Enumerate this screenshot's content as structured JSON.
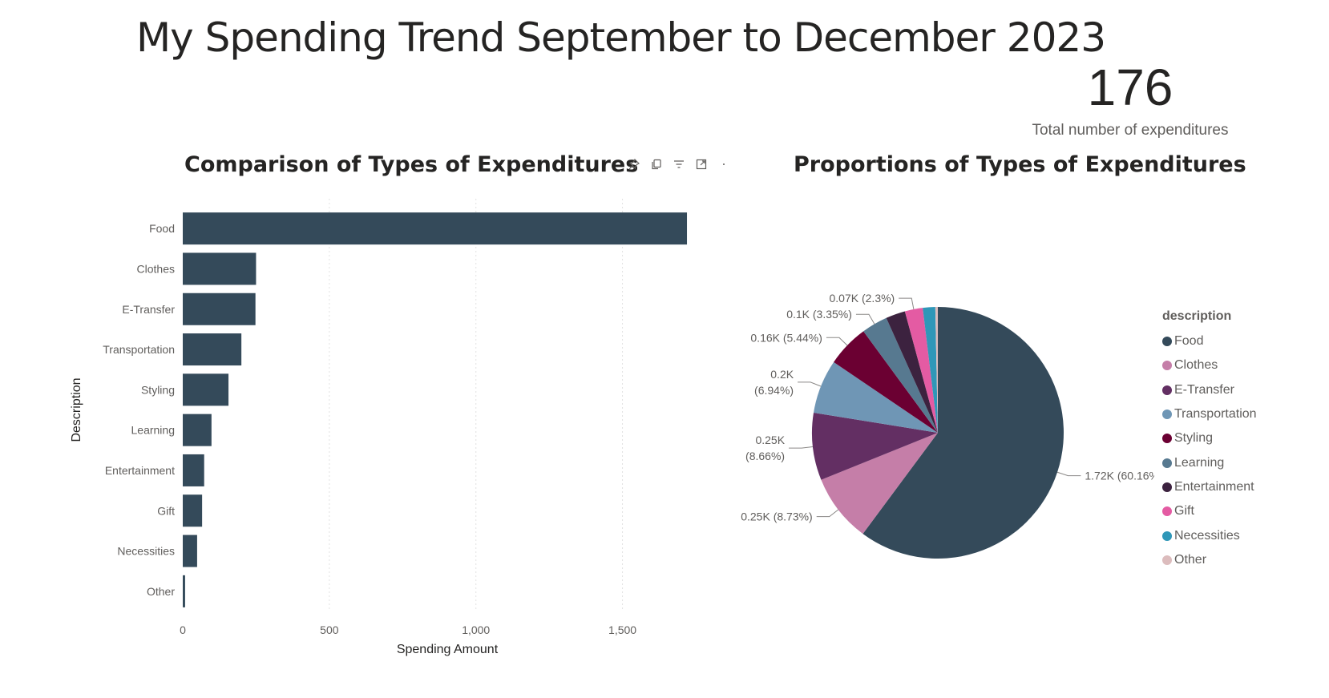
{
  "page": {
    "title": "My Spending Trend September to December 2023"
  },
  "kpi": {
    "value": "176",
    "label": "Total number of expenditures"
  },
  "chart_data": [
    {
      "type": "bar",
      "orientation": "horizontal",
      "title": "Comparison of Types of Expenditures",
      "xlabel": "Spending Amount",
      "ylabel": "Description",
      "categories": [
        "Food",
        "Clothes",
        "E-Transfer",
        "Transportation",
        "Styling",
        "Learning",
        "Entertainment",
        "Gift",
        "Necessities",
        "Other"
      ],
      "values": [
        1720,
        250,
        248,
        200,
        156,
        98,
        73,
        66,
        49,
        8
      ],
      "xlim": [
        0,
        1750
      ],
      "xticks": [
        0,
        500,
        1000,
        1500
      ],
      "xtick_labels": [
        "0",
        "500",
        "1,000",
        "1,500"
      ],
      "grid": "vertical",
      "bar_color": "#344a5a"
    },
    {
      "type": "pie",
      "title": "Proportions of Types of Expenditures",
      "legend_title": "description",
      "legend_position": "right",
      "categories": [
        "Food",
        "Clothes",
        "E-Transfer",
        "Transportation",
        "Styling",
        "Learning",
        "Entertainment",
        "Gift",
        "Necessities",
        "Other"
      ],
      "values": [
        60.16,
        8.73,
        8.66,
        6.94,
        5.44,
        3.35,
        2.5,
        2.3,
        1.6,
        0.32
      ],
      "colors": [
        "#344a5a",
        "#c57ea8",
        "#632f63",
        "#6f96b5",
        "#6b0032",
        "#577990",
        "#3c223f",
        "#e45ba3",
        "#2f97b8",
        "#dcbcbd"
      ],
      "data_labels": [
        {
          "category": "Food",
          "lines": [
            "1.72K (60.16%)"
          ]
        },
        {
          "category": "Clothes",
          "lines": [
            "0.25K (8.73%)"
          ]
        },
        {
          "category": "E-Transfer",
          "lines": [
            "0.25K",
            "(8.66%)"
          ]
        },
        {
          "category": "Transportation",
          "lines": [
            "0.2K",
            "(6.94%)"
          ]
        },
        {
          "category": "Styling",
          "lines": [
            "0.16K (5.44%)"
          ]
        },
        {
          "category": "Learning",
          "lines": [
            "0.1K (3.35%)"
          ]
        },
        {
          "category": "Gift",
          "lines": [
            "0.07K (2.3%)"
          ]
        }
      ]
    }
  ],
  "toolbar": {
    "icons": [
      "pin-icon",
      "copy-icon",
      "filter-icon",
      "focus-mode-icon",
      "more-options-icon"
    ],
    "icon_color": "#605e5c"
  }
}
